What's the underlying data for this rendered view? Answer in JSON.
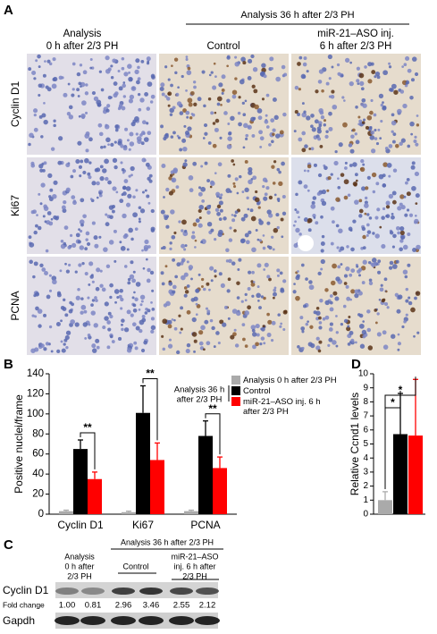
{
  "panel_a": {
    "label": "A",
    "group_header": "Analysis 36 h after 2/3 PH",
    "columns": [
      [
        "Analysis",
        "0 h after 2/3 PH"
      ],
      [
        "Control"
      ],
      [
        "miR-21–ASO inj.",
        "6 h after 2/3 PH"
      ]
    ],
    "rows": [
      "Cyclin D1",
      "Ki67",
      "PCNA"
    ]
  },
  "chart_data": [
    {
      "type": "bar",
      "label": "B",
      "y_label": "Positive nuclei/frame",
      "categories": [
        "Cyclin D1",
        "Ki67",
        "PCNA"
      ],
      "legend_group": [
        "Analysis 36 h",
        "after 2/3 PH"
      ],
      "series": [
        {
          "name": "Analysis 0 h after 2/3 PH",
          "color": "#aaaaaa",
          "values": [
            3,
            2,
            3
          ],
          "errors": [
            1,
            1,
            1
          ]
        },
        {
          "name": "Control",
          "color": "#000000",
          "values": [
            65,
            101,
            78
          ],
          "errors": [
            9,
            27,
            15
          ]
        },
        {
          "name": "miR-21–ASO inj. 6 h after 2/3 PH",
          "color": "#ff0000",
          "values": [
            35,
            54,
            46
          ],
          "errors": [
            7,
            17,
            11
          ]
        }
      ],
      "annotations": [
        "**",
        "**",
        "**"
      ],
      "ylim": [
        0,
        140
      ],
      "yticks": [
        0,
        20,
        40,
        60,
        80,
        100,
        120,
        140
      ]
    },
    {
      "type": "bar",
      "label": "D",
      "y_label": "Relative Ccnd1 levels",
      "values": [
        1.0,
        5.7,
        5.6
      ],
      "errors": [
        0.6,
        2.9,
        4.0
      ],
      "colors": [
        "#aaaaaa",
        "#000000",
        "#ff0000"
      ],
      "annotations": [
        "*",
        "*"
      ],
      "ylim": [
        0,
        10
      ],
      "yticks": [
        0,
        1,
        2,
        3,
        4,
        5,
        6,
        7,
        8,
        9,
        10
      ]
    }
  ],
  "panel_c": {
    "label": "C",
    "col_0h": [
      "Analysis",
      "0 h after",
      "2/3 PH"
    ],
    "group_header": "Analysis 36 h after 2/3 PH",
    "col_control": "Control",
    "col_aso": [
      "miR-21–ASO",
      "inj. 6 h after",
      "2/3 PH"
    ],
    "row_cyclin": "Cyclin D1",
    "row_fold": "Fold change",
    "row_gapdh": "Gapdh",
    "fold_changes": [
      "1.00",
      "0.81",
      "2.96",
      "3.46",
      "2.55",
      "2.12"
    ]
  }
}
